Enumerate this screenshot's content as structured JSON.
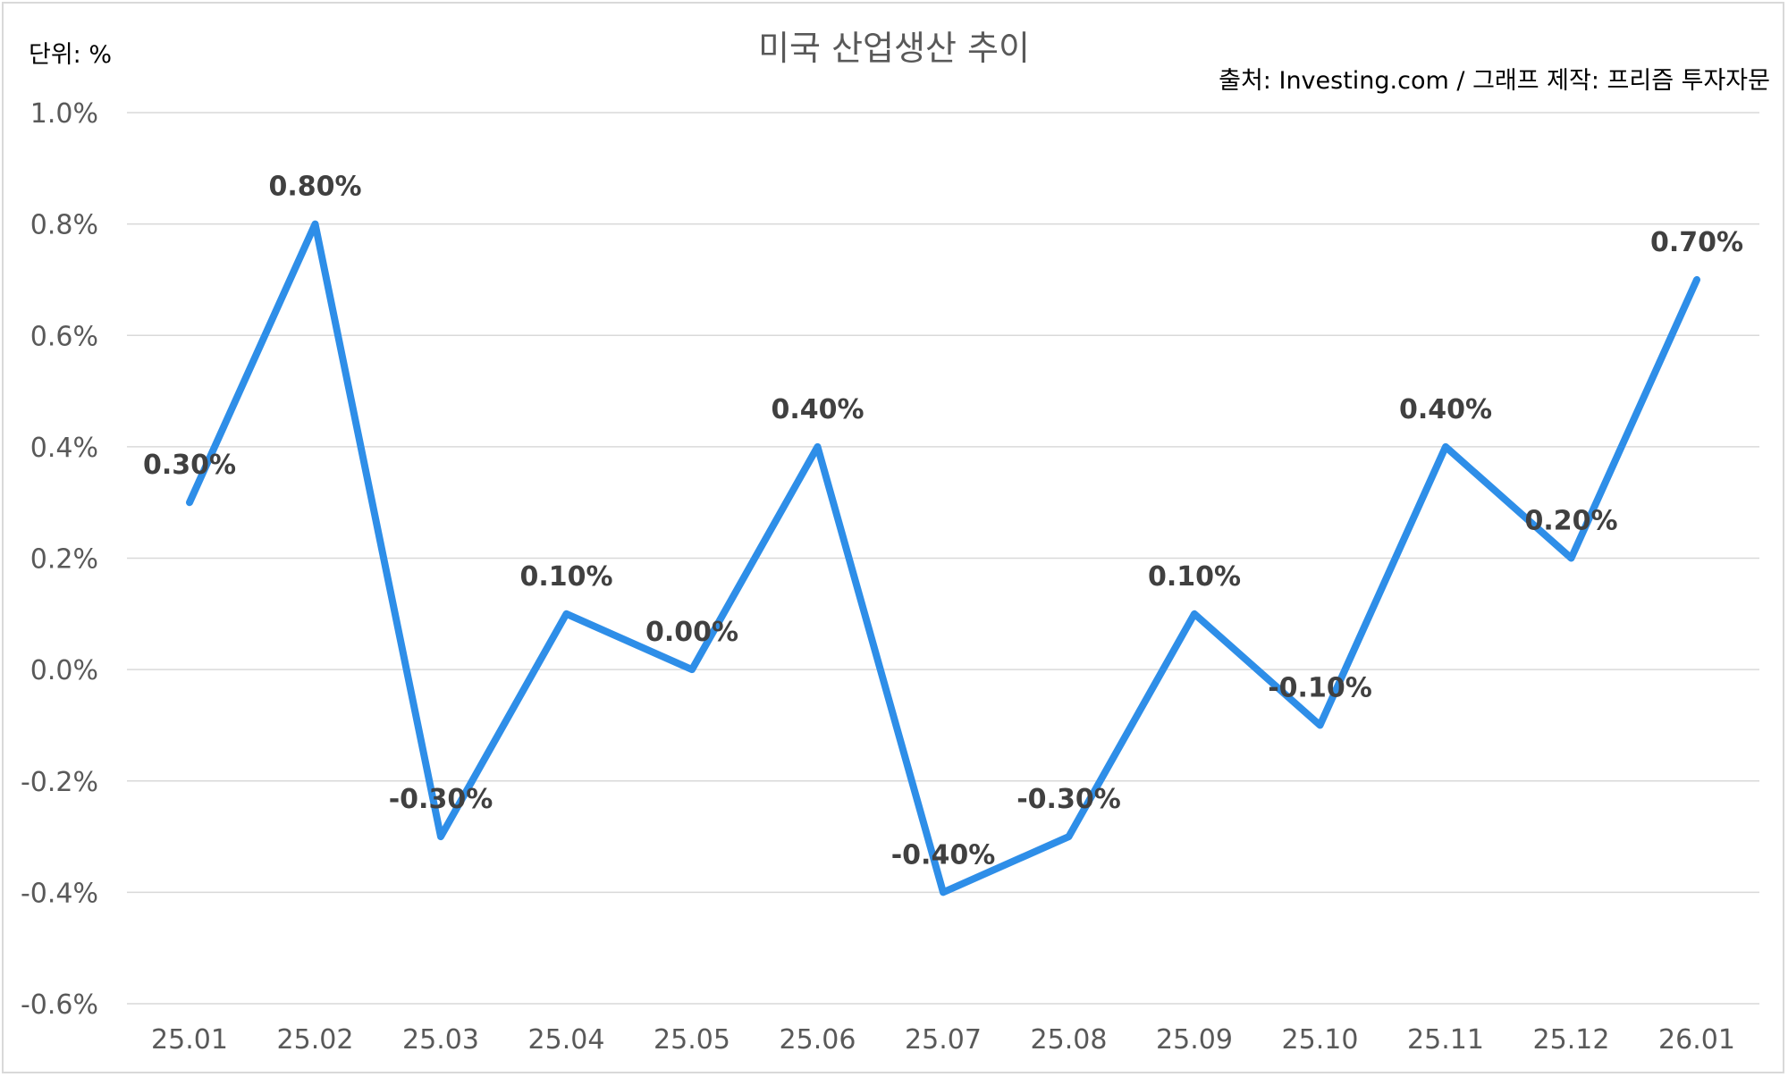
{
  "chart_data": {
    "type": "line",
    "title": "미국 산업생산 추이",
    "unit_label": "단위: %",
    "source": "출처: Investing.com / 그래프 제작: 프리즘 투자자문",
    "categories": [
      "25.01",
      "25.02",
      "25.03",
      "25.04",
      "25.05",
      "25.06",
      "25.07",
      "25.08",
      "25.09",
      "25.10",
      "25.11",
      "25.12",
      "26.01"
    ],
    "series": [
      {
        "values": [
          0.3,
          0.8,
          -0.3,
          0.1,
          0.0,
          0.4,
          -0.4,
          -0.3,
          0.1,
          -0.1,
          0.4,
          0.2,
          0.7
        ],
        "labels": [
          "0.30%",
          "0.80%",
          "-0.30%",
          "0.10%",
          "0.00%",
          "0.40%",
          "-0.40%",
          "-0.30%",
          "0.10%",
          "-0.10%",
          "0.40%",
          "0.20%",
          "0.70%"
        ],
        "color": "#2e8ee8"
      }
    ],
    "yticks": [
      1.0,
      0.8,
      0.6,
      0.4,
      0.2,
      0.0,
      -0.2,
      -0.4,
      -0.6
    ],
    "ytick_labels": [
      "1.0%",
      "0.8%",
      "0.6%",
      "0.4%",
      "0.2%",
      "0.0%",
      "-0.2%",
      "-0.4%",
      "-0.6%"
    ],
    "ylim": [
      -0.6,
      1.0
    ],
    "grid": true,
    "legend": "none"
  }
}
